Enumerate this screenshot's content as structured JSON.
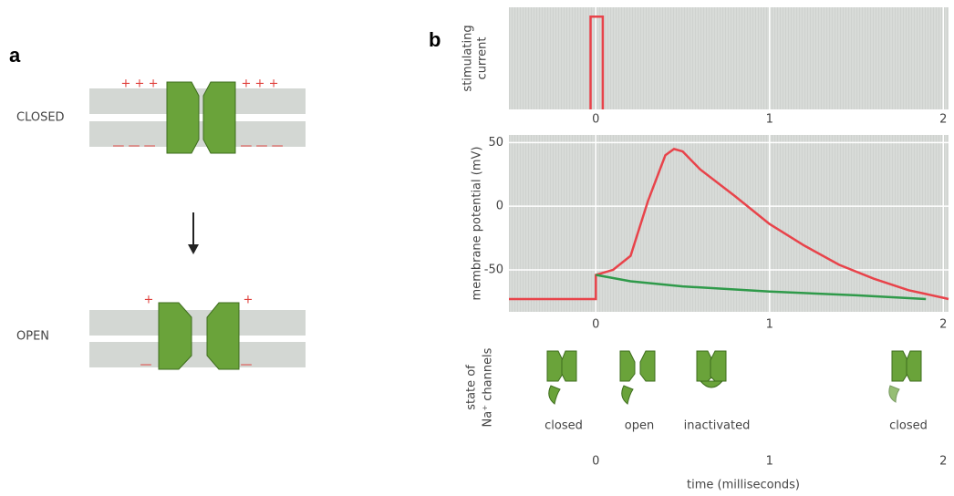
{
  "panel_a": {
    "label": "a",
    "closed": {
      "label": "CLOSED",
      "charges": [
        "+ + +",
        "+ + +",
        "— — —",
        "— — —"
      ]
    },
    "open": {
      "label": "OPEN",
      "charges": [
        "+",
        "+",
        "—",
        "—"
      ]
    }
  },
  "panel_b": {
    "label": "b",
    "channel_states": [
      "closed",
      "open",
      "inactivated",
      "closed"
    ],
    "state_label": [
      "state of",
      "Na⁺ channels"
    ],
    "time_axis": {
      "label": "time (milliseconds)",
      "ticks": [
        0,
        1,
        2
      ]
    }
  },
  "chart_data": [
    {
      "type": "line",
      "ylabel": [
        "stimulating",
        "current"
      ],
      "xlim": [
        -0.5,
        2.03
      ],
      "ylim": [
        0,
        1.1
      ],
      "xticks": [
        0,
        1,
        2
      ],
      "grid": true,
      "series": [
        {
          "color": "#e8434a",
          "x": [
            -0.03,
            -0.03,
            0.04,
            0.04
          ],
          "values": [
            0,
            1,
            1,
            0
          ]
        }
      ]
    },
    {
      "type": "line",
      "ylabel": [
        "membrane potential (mV)"
      ],
      "xlim": [
        -0.5,
        2.03
      ],
      "ylim": [
        -83,
        56
      ],
      "xticks": [
        0,
        1,
        2
      ],
      "yticks": [
        50,
        0,
        -50
      ],
      "grid": true,
      "series": [
        {
          "color": "#e8434a",
          "x": [
            -0.5,
            0,
            0,
            0.1,
            0.2,
            0.3,
            0.4,
            0.45,
            0.5,
            0.6,
            0.8,
            1.0,
            1.2,
            1.4,
            1.6,
            1.8,
            2.0,
            2.03
          ],
          "values": [
            -73,
            -73,
            -54,
            -50,
            -39,
            4,
            40,
            45,
            43,
            29,
            8,
            -14,
            -31,
            -46,
            -57,
            -66,
            -72,
            -73
          ]
        },
        {
          "color": "#2f9a4a",
          "x": [
            0,
            0.2,
            0.5,
            1.0,
            1.5,
            1.9
          ],
          "values": [
            -54,
            -59,
            -63,
            -67,
            -70,
            -73
          ]
        }
      ]
    }
  ]
}
